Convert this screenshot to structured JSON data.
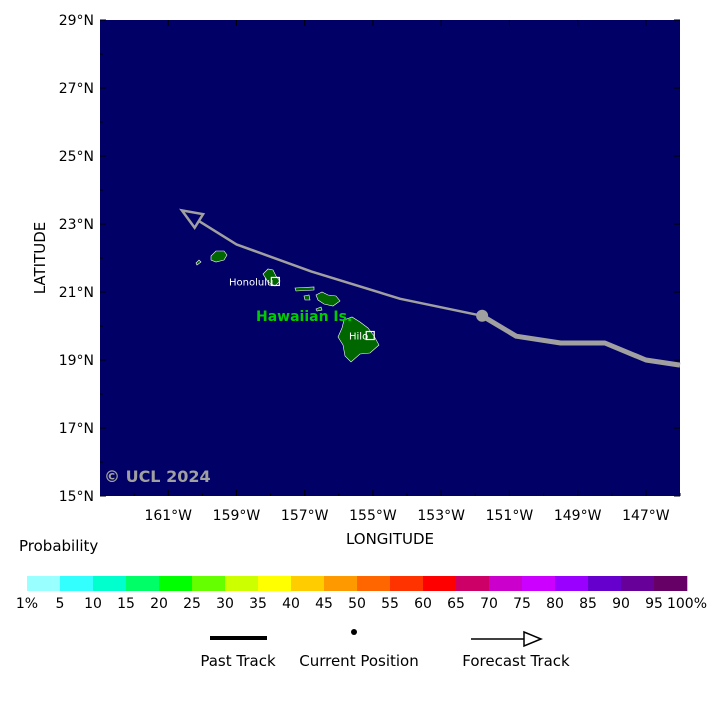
{
  "map": {
    "watermark": "© UCL 2024",
    "region_label": "Hawaiian Is.",
    "cities": [
      {
        "name": "Honolulu",
        "lon": -157.86,
        "lat": 21.31
      },
      {
        "name": "Hilo",
        "lon": -155.08,
        "lat": 19.72
      }
    ],
    "lon_range": [
      -163.0,
      -146.0
    ],
    "lat_range": [
      15.0,
      29.0
    ],
    "x_ticks": [
      {
        "value": -161,
        "label": "161°W"
      },
      {
        "value": -159,
        "label": "159°W"
      },
      {
        "value": -157,
        "label": "157°W"
      },
      {
        "value": -155,
        "label": "155°W"
      },
      {
        "value": -153,
        "label": "153°W"
      },
      {
        "value": -151,
        "label": "151°W"
      },
      {
        "value": -149,
        "label": "149°W"
      },
      {
        "value": -147,
        "label": "147°W"
      }
    ],
    "y_ticks": [
      {
        "value": 29,
        "label": "29°N"
      },
      {
        "value": 27,
        "label": "27°N"
      },
      {
        "value": 25,
        "label": "25°N"
      },
      {
        "value": 23,
        "label": "23°N"
      },
      {
        "value": 21,
        "label": "21°N"
      },
      {
        "value": 19,
        "label": "19°N"
      },
      {
        "value": 17,
        "label": "17°N"
      },
      {
        "value": 15,
        "label": "15°N"
      }
    ],
    "xlabel": "LONGITUDE",
    "ylabel": "LATITUDE",
    "ocean_color": "#000066",
    "land_color": "#006600",
    "track_color": "#a0a0a0",
    "past_track": [
      {
        "lon": -146.0,
        "lat": 18.85
      },
      {
        "lon": -147.0,
        "lat": 19.0
      },
      {
        "lon": -148.2,
        "lat": 19.5
      },
      {
        "lon": -149.5,
        "lat": 19.5
      },
      {
        "lon": -150.8,
        "lat": 19.7
      },
      {
        "lon": -151.8,
        "lat": 20.3
      }
    ],
    "current_position": {
      "lon": -151.8,
      "lat": 20.3
    },
    "forecast_track": [
      {
        "lon": -151.8,
        "lat": 20.3
      },
      {
        "lon": -154.2,
        "lat": 20.8
      },
      {
        "lon": -156.8,
        "lat": 21.6
      },
      {
        "lon": -159.0,
        "lat": 22.4
      },
      {
        "lon": -160.6,
        "lat": 23.4
      }
    ]
  },
  "legend": {
    "title": "Probability",
    "colors": [
      "#99ffff",
      "#33ffff",
      "#00ffcc",
      "#00ff66",
      "#00ff00",
      "#66ff00",
      "#ccff00",
      "#ffff00",
      "#ffcc00",
      "#ff9900",
      "#ff6600",
      "#ff3300",
      "#ff0000",
      "#cc0066",
      "#cc00cc",
      "#cc00ff",
      "#9900ff",
      "#6600cc",
      "#660099",
      "#660066"
    ],
    "labels": [
      "1%",
      "5",
      "10",
      "15",
      "20",
      "25",
      "30",
      "35",
      "40",
      "45",
      "50",
      "55",
      "60",
      "65",
      "70",
      "75",
      "80",
      "85",
      "90",
      "95",
      "100%"
    ],
    "past_track_label": "Past Track",
    "current_position_label": "Current Position",
    "forecast_track_label": "Forecast Track"
  }
}
